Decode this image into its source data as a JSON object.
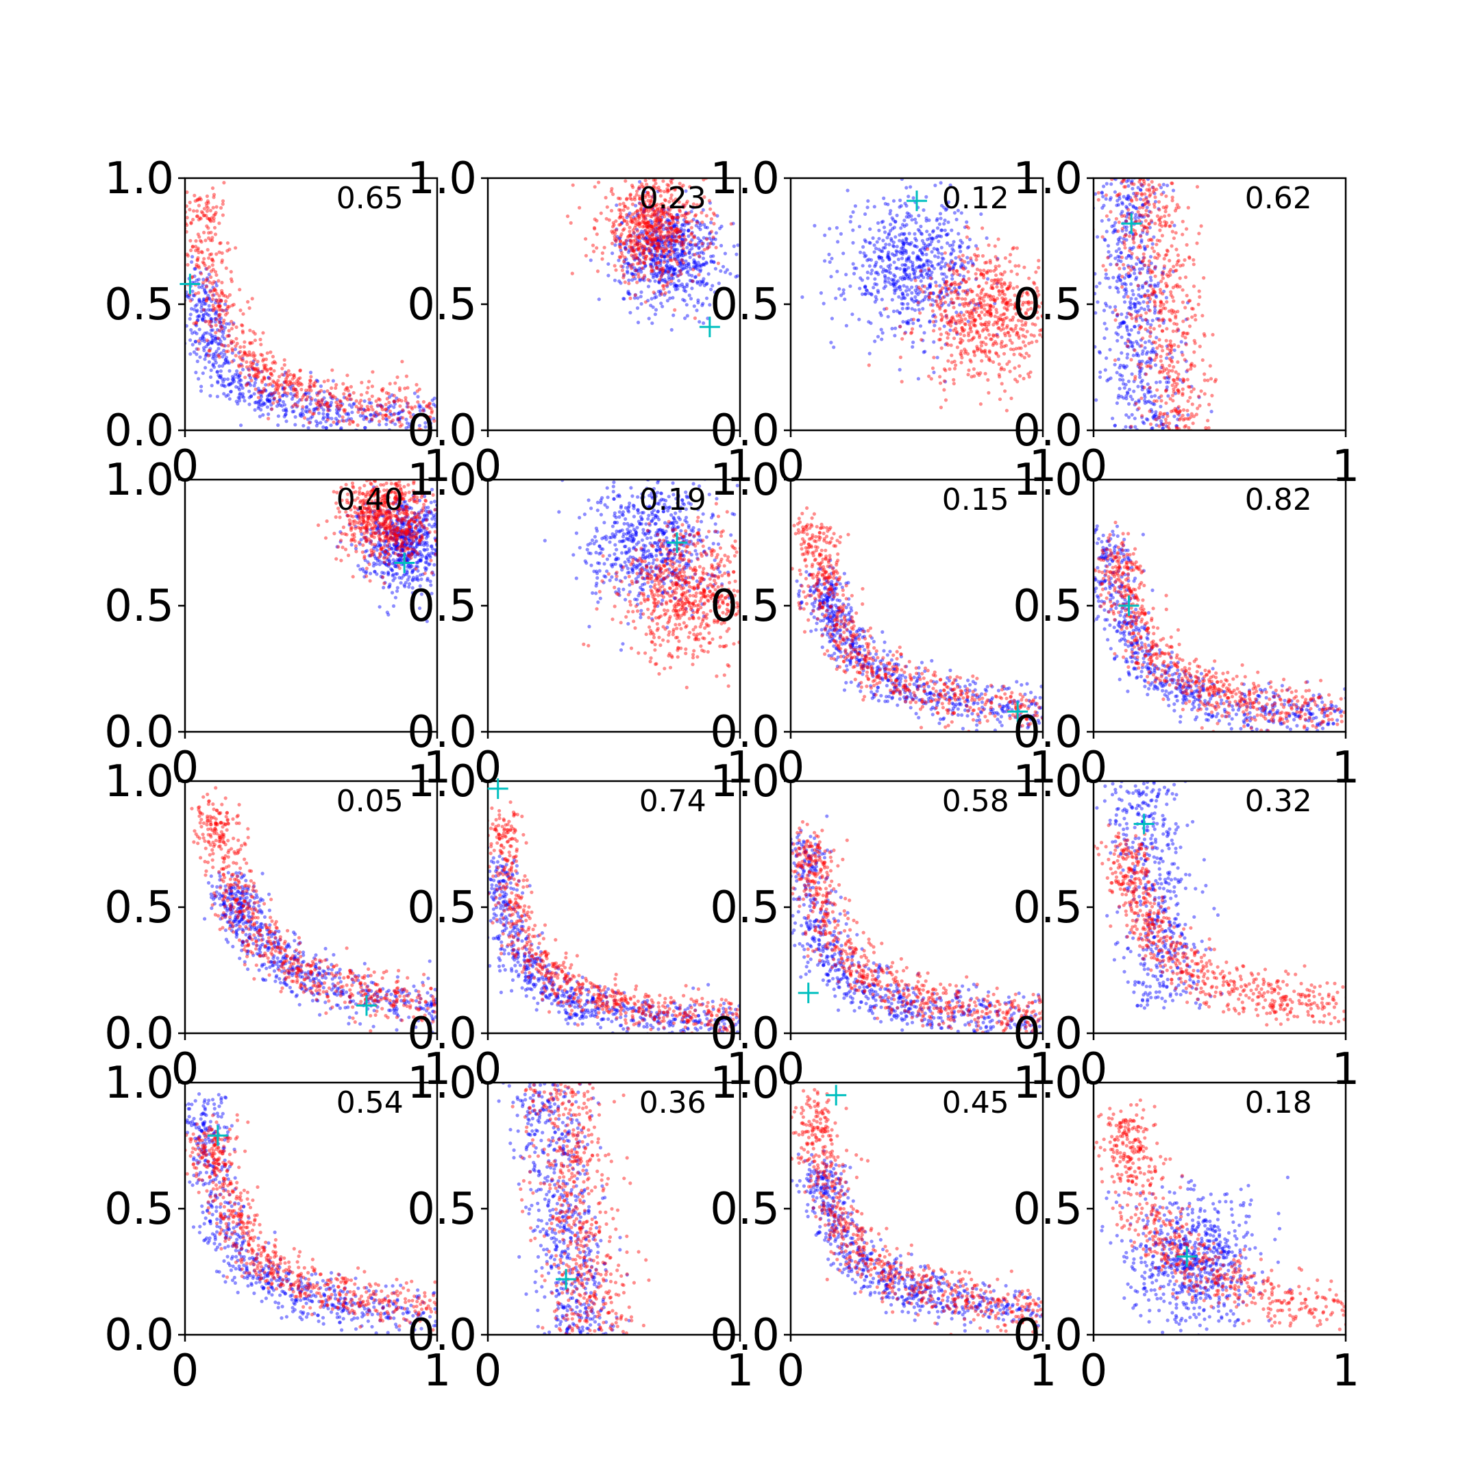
{
  "figure": {
    "rows": 4,
    "cols": 4,
    "colors": {
      "series_a": "#0000ff",
      "series_b": "#ff0000",
      "marker": "#00bfbf",
      "axis": "#000000"
    }
  },
  "chart_data": [
    {
      "type": "scatter",
      "panel_label": "0.65",
      "xlim": [
        0,
        1
      ],
      "ylim": [
        0,
        1
      ],
      "x_ticks": [
        "0",
        "1"
      ],
      "y_ticks": [
        "0.0",
        "0.5",
        "1.0"
      ],
      "marker": {
        "x": 0.02,
        "y": 0.58
      },
      "pattern": "lshape",
      "spread": 0.08,
      "series": [
        {
          "color": "#0000ff",
          "shape": "lshape",
          "center": [
            0.1,
            0.12
          ]
        },
        {
          "color": "#ff0000",
          "shape": "lshape",
          "center": [
            0.15,
            0.45
          ]
        }
      ]
    },
    {
      "type": "scatter",
      "panel_label": "0.23",
      "xlim": [
        0,
        1
      ],
      "ylim": [
        0,
        1
      ],
      "x_ticks": [
        "0",
        "1"
      ],
      "y_ticks": [
        "0.0",
        "0.5",
        "1.0"
      ],
      "marker": {
        "x": 0.88,
        "y": 0.41
      },
      "pattern": "band",
      "spread": 0.08,
      "series": [
        {
          "color": "#0000ff",
          "shape": "blob",
          "center": [
            0.72,
            0.7
          ]
        },
        {
          "color": "#ff0000",
          "shape": "blob",
          "center": [
            0.65,
            0.8
          ]
        }
      ]
    },
    {
      "type": "scatter",
      "panel_label": "0.12",
      "xlim": [
        0,
        1
      ],
      "ylim": [
        0,
        1
      ],
      "x_ticks": [
        "0",
        "1"
      ],
      "y_ticks": [
        "0.0",
        "0.5",
        "1.0"
      ],
      "marker": {
        "x": 0.5,
        "y": 0.91
      },
      "pattern": "band",
      "spread": 0.1,
      "series": [
        {
          "color": "#0000ff",
          "shape": "blob",
          "center": [
            0.48,
            0.65
          ]
        },
        {
          "color": "#ff0000",
          "shape": "blob",
          "center": [
            0.78,
            0.45
          ]
        }
      ]
    },
    {
      "type": "scatter",
      "panel_label": "0.62",
      "xlim": [
        0,
        1
      ],
      "ylim": [
        0,
        1
      ],
      "x_ticks": [
        "0",
        "1"
      ],
      "y_ticks": [
        "0.0",
        "0.5",
        "1.0"
      ],
      "marker": {
        "x": 0.15,
        "y": 0.82
      },
      "pattern": "vertical",
      "spread": 0.08,
      "series": [
        {
          "color": "#0000ff",
          "shape": "vertical",
          "center": [
            0.12,
            0.6
          ]
        },
        {
          "color": "#ff0000",
          "shape": "vertical",
          "center": [
            0.2,
            0.4
          ]
        }
      ]
    },
    {
      "type": "scatter",
      "panel_label": "0.40",
      "xlim": [
        0,
        1
      ],
      "ylim": [
        0,
        1
      ],
      "x_ticks": [
        "0",
        "1"
      ],
      "y_ticks": [
        "0.0",
        "0.5",
        "1.0"
      ],
      "marker": {
        "x": 0.87,
        "y": 0.67
      },
      "pattern": "blob",
      "spread": 0.07,
      "series": [
        {
          "color": "#0000ff",
          "shape": "blob",
          "center": [
            0.87,
            0.75
          ]
        },
        {
          "color": "#ff0000",
          "shape": "blob",
          "center": [
            0.8,
            0.85
          ]
        }
      ]
    },
    {
      "type": "scatter",
      "panel_label": "0.19",
      "xlim": [
        0,
        1
      ],
      "ylim": [
        0,
        1
      ],
      "x_ticks": [
        "0",
        "1"
      ],
      "y_ticks": [
        "0.0",
        "0.5",
        "1.0"
      ],
      "marker": {
        "x": 0.75,
        "y": 0.75
      },
      "pattern": "band",
      "spread": 0.1,
      "series": [
        {
          "color": "#0000ff",
          "shape": "blob",
          "center": [
            0.65,
            0.75
          ]
        },
        {
          "color": "#ff0000",
          "shape": "blob",
          "center": [
            0.8,
            0.55
          ]
        }
      ]
    },
    {
      "type": "scatter",
      "panel_label": "0.15",
      "xlim": [
        0,
        1
      ],
      "ylim": [
        0,
        1
      ],
      "x_ticks": [
        "0",
        "1"
      ],
      "y_ticks": [
        "0.0",
        "0.5",
        "1.0"
      ],
      "marker": {
        "x": 0.9,
        "y": 0.08
      },
      "pattern": "lshape",
      "spread": 0.08,
      "series": [
        {
          "color": "#0000ff",
          "shape": "lshape",
          "center": [
            0.4,
            0.12
          ]
        },
        {
          "color": "#ff0000",
          "shape": "lshape",
          "center": [
            0.25,
            0.35
          ]
        }
      ]
    },
    {
      "type": "scatter",
      "panel_label": "0.82",
      "xlim": [
        0,
        1
      ],
      "ylim": [
        0,
        1
      ],
      "x_ticks": [
        "0",
        "1"
      ],
      "y_ticks": [
        "0.0",
        "0.5",
        "1.0"
      ],
      "marker": {
        "x": 0.14,
        "y": 0.5
      },
      "pattern": "lshape",
      "spread": 0.08,
      "series": [
        {
          "color": "#0000ff",
          "shape": "lshape",
          "center": [
            0.12,
            0.3
          ]
        },
        {
          "color": "#ff0000",
          "shape": "lshape",
          "center": [
            0.25,
            0.25
          ]
        }
      ]
    },
    {
      "type": "scatter",
      "panel_label": "0.05",
      "xlim": [
        0,
        1
      ],
      "ylim": [
        0,
        1
      ],
      "x_ticks": [
        "0",
        "1"
      ],
      "y_ticks": [
        "0.0",
        "0.5",
        "1.0"
      ],
      "marker": {
        "x": 0.72,
        "y": 0.11
      },
      "pattern": "lshape",
      "spread": 0.08,
      "series": [
        {
          "color": "#0000ff",
          "shape": "lshape",
          "center": [
            0.6,
            0.12
          ]
        },
        {
          "color": "#ff0000",
          "shape": "lshape",
          "center": [
            0.35,
            0.45
          ]
        }
      ]
    },
    {
      "type": "scatter",
      "panel_label": "0.74",
      "xlim": [
        0,
        1
      ],
      "ylim": [
        0,
        1
      ],
      "x_ticks": [
        "0",
        "1"
      ],
      "y_ticks": [
        "0.0",
        "0.5",
        "1.0"
      ],
      "marker": {
        "x": 0.04,
        "y": 0.97
      },
      "pattern": "lshape",
      "spread": 0.07,
      "series": [
        {
          "color": "#0000ff",
          "shape": "lshape",
          "center": [
            0.08,
            0.2
          ]
        },
        {
          "color": "#ff0000",
          "shape": "lshape",
          "center": [
            0.1,
            0.4
          ]
        }
      ]
    },
    {
      "type": "scatter",
      "panel_label": "0.58",
      "xlim": [
        0,
        1
      ],
      "ylim": [
        0,
        1
      ],
      "x_ticks": [
        "0",
        "1"
      ],
      "y_ticks": [
        "0.0",
        "0.5",
        "1.0"
      ],
      "marker": {
        "x": 0.07,
        "y": 0.16
      },
      "pattern": "lshape",
      "spread": 0.08,
      "series": [
        {
          "color": "#0000ff",
          "shape": "lshape",
          "center": [
            0.08,
            0.3
          ]
        },
        {
          "color": "#ff0000",
          "shape": "lshape",
          "center": [
            0.2,
            0.3
          ]
        }
      ]
    },
    {
      "type": "scatter",
      "panel_label": "0.32",
      "xlim": [
        0,
        1
      ],
      "ylim": [
        0,
        1
      ],
      "x_ticks": [
        "0",
        "1"
      ],
      "y_ticks": [
        "0.0",
        "0.5",
        "1.0"
      ],
      "marker": {
        "x": 0.2,
        "y": 0.83
      },
      "pattern": "vertical",
      "spread": 0.08,
      "series": [
        {
          "color": "#0000ff",
          "shape": "vertical",
          "center": [
            0.18,
            0.7
          ]
        },
        {
          "color": "#ff0000",
          "shape": "lshape",
          "center": [
            0.35,
            0.3
          ]
        }
      ]
    },
    {
      "type": "scatter",
      "panel_label": "0.54",
      "xlim": [
        0,
        1
      ],
      "ylim": [
        0,
        1
      ],
      "x_ticks": [
        "0",
        "1"
      ],
      "y_ticks": [
        "0.0",
        "0.5",
        "1.0"
      ],
      "marker": {
        "x": 0.13,
        "y": 0.79
      },
      "pattern": "lshape",
      "spread": 0.08,
      "series": [
        {
          "color": "#0000ff",
          "shape": "lshape",
          "center": [
            0.15,
            0.45
          ]
        },
        {
          "color": "#ff0000",
          "shape": "lshape",
          "center": [
            0.3,
            0.35
          ]
        }
      ]
    },
    {
      "type": "scatter",
      "panel_label": "0.36",
      "xlim": [
        0,
        1
      ],
      "ylim": [
        0,
        1
      ],
      "x_ticks": [
        "0",
        "1"
      ],
      "y_ticks": [
        "0.0",
        "0.5",
        "1.0"
      ],
      "marker": {
        "x": 0.31,
        "y": 0.22
      },
      "pattern": "vertical",
      "spread": 0.08,
      "series": [
        {
          "color": "#0000ff",
          "shape": "vertical",
          "center": [
            0.22,
            0.6
          ]
        },
        {
          "color": "#ff0000",
          "shape": "vertical",
          "center": [
            0.28,
            0.45
          ]
        }
      ]
    },
    {
      "type": "scatter",
      "panel_label": "0.45",
      "xlim": [
        0,
        1
      ],
      "ylim": [
        0,
        1
      ],
      "x_ticks": [
        "0",
        "1"
      ],
      "y_ticks": [
        "0.0",
        "0.5",
        "1.0"
      ],
      "marker": {
        "x": 0.18,
        "y": 0.95
      },
      "pattern": "lshape",
      "spread": 0.08,
      "series": [
        {
          "color": "#0000ff",
          "shape": "lshape",
          "center": [
            0.35,
            0.2
          ]
        },
        {
          "color": "#ff0000",
          "shape": "lshape",
          "center": [
            0.25,
            0.45
          ]
        }
      ]
    },
    {
      "type": "scatter",
      "panel_label": "0.18",
      "xlim": [
        0,
        1
      ],
      "ylim": [
        0,
        1
      ],
      "x_ticks": [
        "0",
        "1"
      ],
      "y_ticks": [
        "0.0",
        "0.5",
        "1.0"
      ],
      "marker": {
        "x": 0.37,
        "y": 0.31
      },
      "pattern": "blob",
      "spread": 0.1,
      "series": [
        {
          "color": "#0000ff",
          "shape": "blob",
          "center": [
            0.4,
            0.3
          ]
        },
        {
          "color": "#ff0000",
          "shape": "lshape",
          "center": [
            0.35,
            0.4
          ]
        }
      ]
    }
  ]
}
